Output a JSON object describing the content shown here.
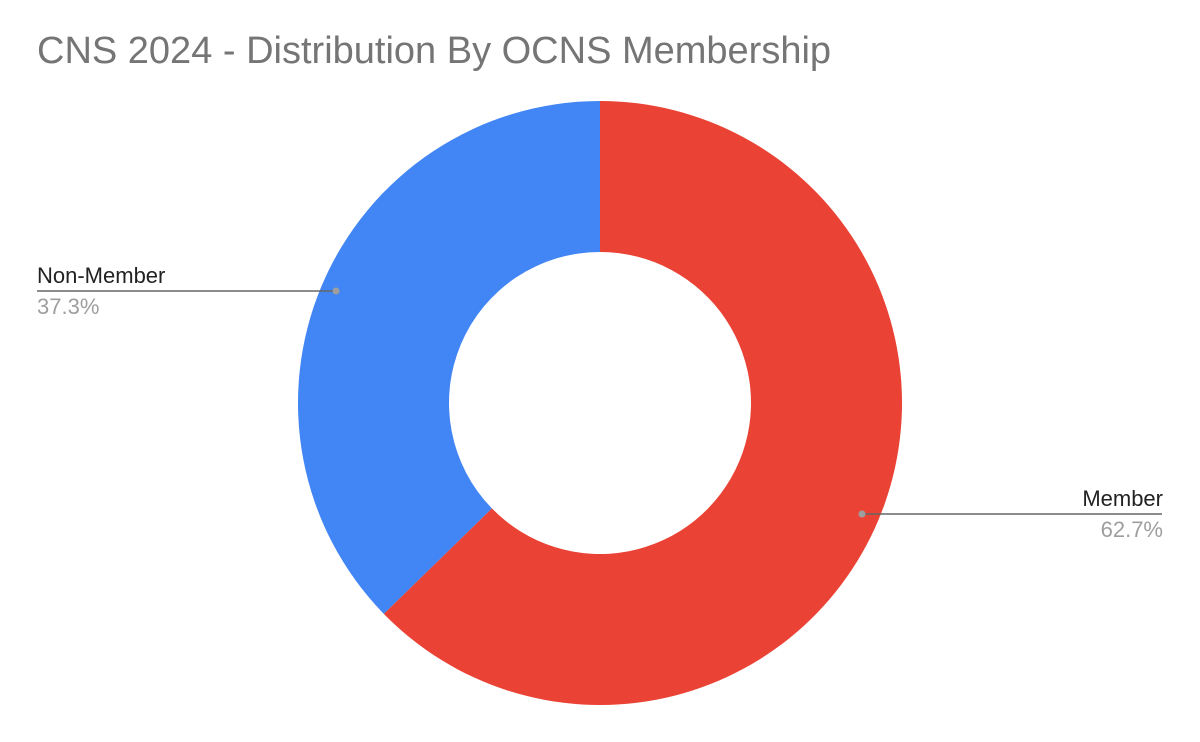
{
  "chart_data": {
    "type": "pie",
    "title": "CNS 2024 - Distribution By OCNS Membership",
    "donut": true,
    "slices": [
      {
        "label": "Member",
        "value": 62.7,
        "display": "62.7%",
        "color": "#EA4335"
      },
      {
        "label": "Non-Member",
        "value": 37.3,
        "display": "37.3%",
        "color": "#4285F4"
      }
    ],
    "legend": "none",
    "start": "top",
    "direction": "clockwise"
  }
}
